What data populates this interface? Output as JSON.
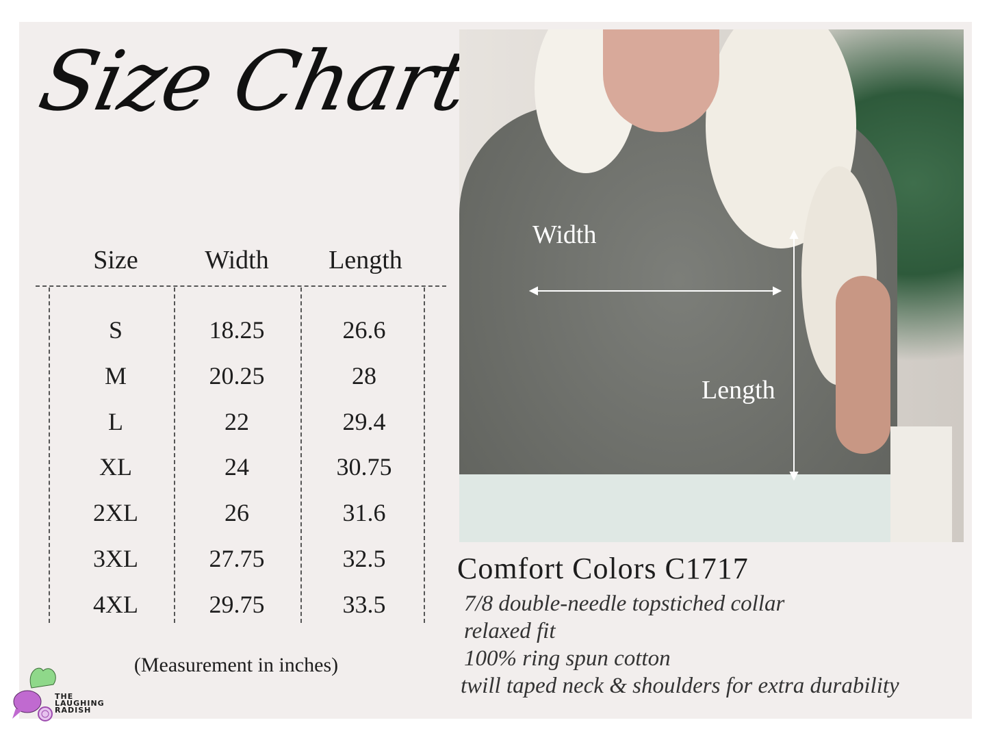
{
  "title": "Size Chart",
  "table": {
    "headers": [
      "Size",
      "Width",
      "Length"
    ],
    "rows": [
      [
        "S",
        "18.25",
        "26.6"
      ],
      [
        "M",
        "20.25",
        "28"
      ],
      [
        "L",
        "22",
        "29.4"
      ],
      [
        "XL",
        "24",
        "30.75"
      ],
      [
        "2XL",
        "26",
        "31.6"
      ],
      [
        "3XL",
        "27.75",
        "32.5"
      ],
      [
        "4XL",
        "29.75",
        "33.5"
      ]
    ],
    "note": "(Measurement in inches)"
  },
  "photo": {
    "width_label": "Width",
    "length_label": "Length"
  },
  "product": {
    "name": "Comfort Colors C1717",
    "features": [
      "7/8 double-needle topstiched collar",
      "relaxed fit",
      "100% ring spun cotton",
      "twill taped neck & shoulders for extra durability"
    ]
  },
  "logo": {
    "text": [
      "THE",
      "LAUGHING",
      "RADISH"
    ]
  },
  "colors": {
    "panel": "#f2eeed",
    "shirt": "#6f716c",
    "radish": "#c06ad0",
    "leaves": "#8fd88a"
  }
}
